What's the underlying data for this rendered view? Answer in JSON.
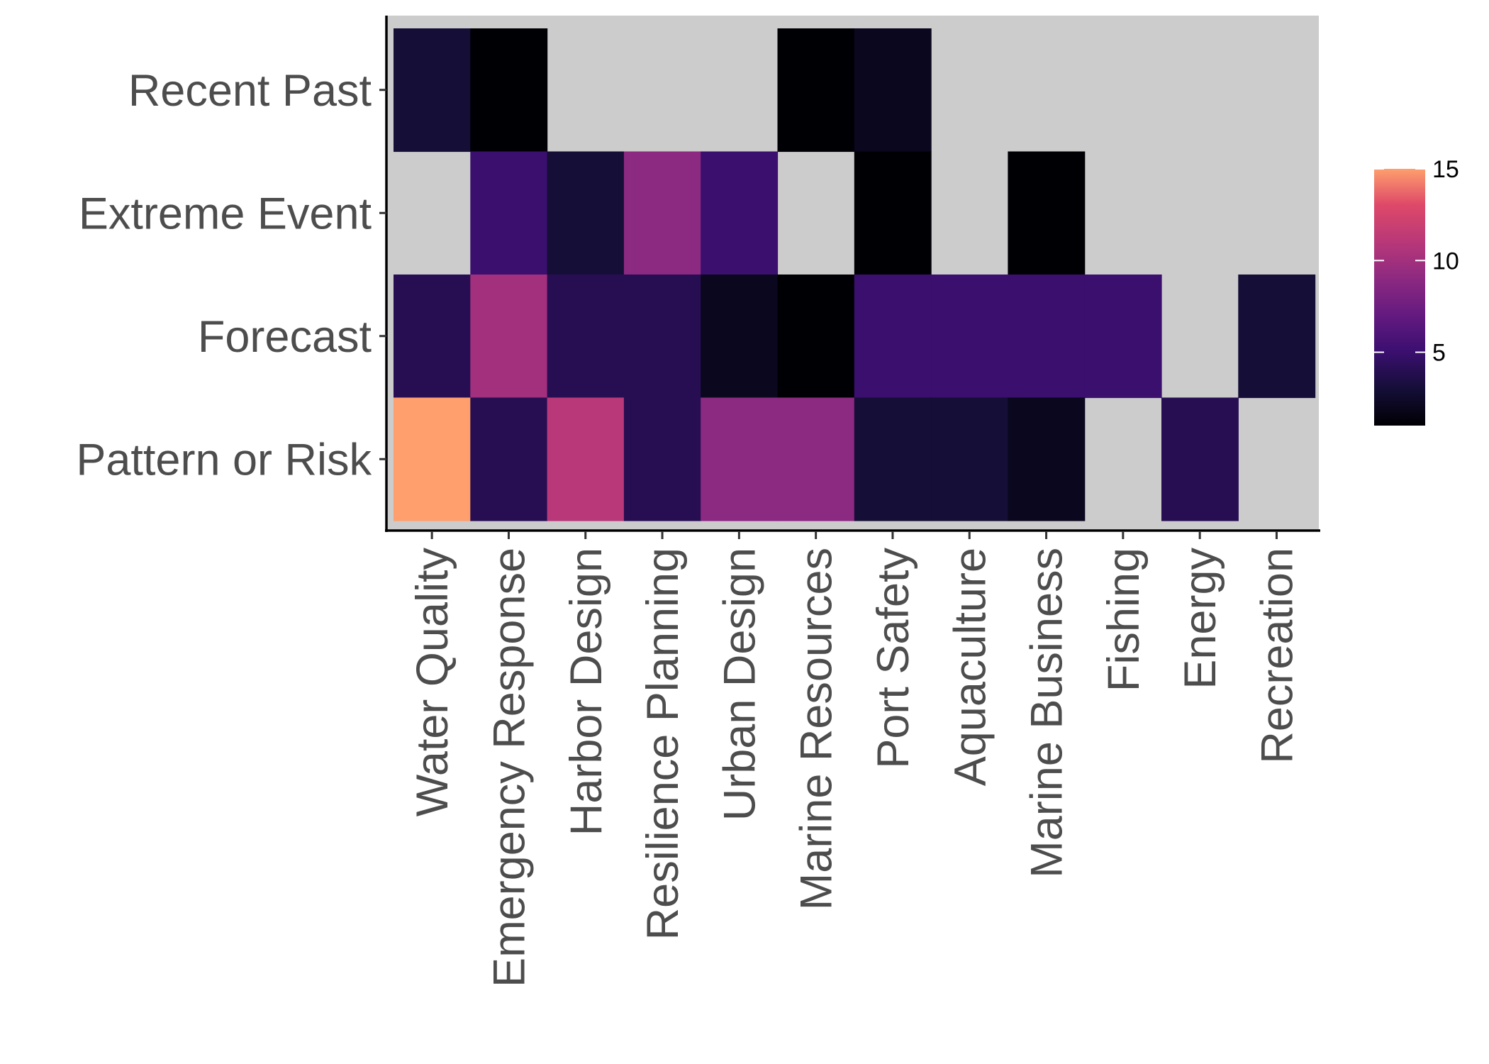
{
  "chart_data": {
    "type": "heatmap",
    "title": "",
    "xlabel": "",
    "ylabel": "",
    "x_categories": [
      "Water Quality",
      "Emergency Response",
      "Harbor Design",
      "Resilience Planning",
      "Urban Design",
      "Marine Resources",
      "Port Safety",
      "Aquaculture",
      "Marine Business",
      "Fishing",
      "Energy",
      "Recreation"
    ],
    "y_categories": [
      "Recent Past",
      "Extreme Event",
      "Forecast",
      "Pattern or Risk"
    ],
    "values": [
      [
        3,
        1,
        null,
        null,
        null,
        1,
        2,
        null,
        null,
        null,
        null,
        null
      ],
      [
        null,
        5,
        3,
        9,
        5,
        null,
        1,
        null,
        1,
        null,
        null,
        null
      ],
      [
        4,
        10,
        4,
        4,
        2,
        1,
        5,
        5,
        5,
        5,
        null,
        3
      ],
      [
        15,
        4,
        11,
        4,
        9,
        9,
        3,
        3,
        2,
        null,
        4,
        null
      ]
    ],
    "colorbar": {
      "palette": "magma",
      "min": 1,
      "max": 15,
      "ticks": [
        5,
        10,
        15
      ],
      "position": "right"
    },
    "missing_color": "#cccccc",
    "grid": false,
    "legend_title": ""
  }
}
